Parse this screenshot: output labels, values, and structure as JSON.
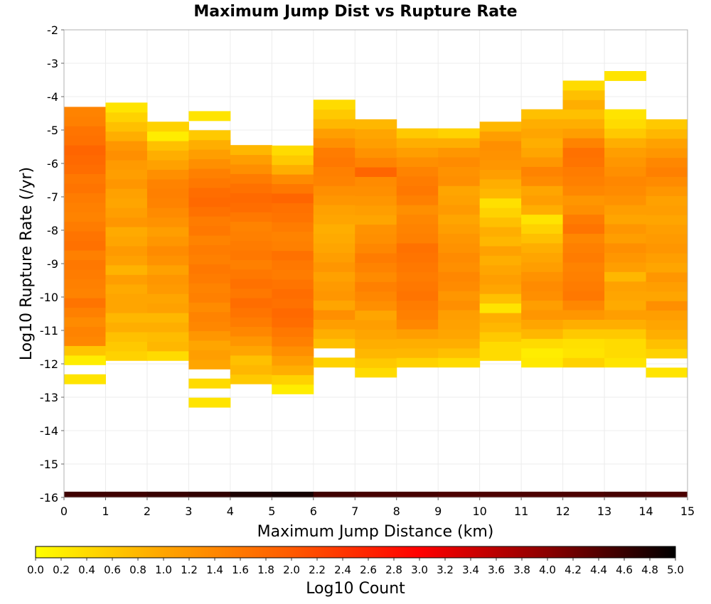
{
  "chart_data": {
    "type": "heatmap",
    "title": "Maximum Jump Dist vs Rupture Rate",
    "xlabel": "Maximum Jump Distance (km)",
    "ylabel": "Log10 Rupture Rate (/yr)",
    "xlim": [
      0,
      15
    ],
    "ylim": [
      -16,
      -2
    ],
    "x_ticks": [
      "0",
      "1",
      "2",
      "3",
      "4",
      "5",
      "6",
      "7",
      "8",
      "9",
      "10",
      "11",
      "12",
      "13",
      "14",
      "15"
    ],
    "y_ticks": [
      "-2",
      "-3",
      "-4",
      "-5",
      "-6",
      "-7",
      "-8",
      "-9",
      "-10",
      "-11",
      "-12",
      "-13",
      "-14",
      "-15",
      "-16"
    ],
    "grid": true,
    "x_bin_width": 1,
    "y_bin_height": 0.286,
    "colorbar": {
      "label": "Log10 Count",
      "range": [
        0,
        5
      ],
      "ticks": [
        "0.0",
        "0.2",
        "0.4",
        "0.6",
        "0.8",
        "1.0",
        "1.2",
        "1.4",
        "1.6",
        "1.8",
        "2.0",
        "2.2",
        "2.4",
        "2.6",
        "2.8",
        "3.0",
        "3.2",
        "3.4",
        "3.6",
        "3.8",
        "4.0",
        "4.2",
        "4.4",
        "4.6",
        "4.8",
        "5.0"
      ],
      "colors": [
        "#ffff00",
        "#ffa500",
        "#ff5a00",
        "#ff0000",
        "#8b0000",
        "#000000"
      ]
    },
    "bottom_row": {
      "y": -16,
      "values": [
        4.55,
        4.55,
        4.6,
        4.65,
        4.8,
        4.85,
        4.55,
        4.5,
        4.5,
        4.45,
        4.45,
        4.45,
        4.45,
        4.5,
        4.45
      ]
    },
    "columns": [
      {
        "x": 0,
        "start": -12.6,
        "values": [
          0.3,
          null,
          0.2,
          0.65,
          1.4,
          1.45,
          1.35,
          1.5,
          1.65,
          1.45,
          1.5,
          1.55,
          1.6,
          1.5,
          1.7,
          1.65,
          1.55,
          1.45,
          1.5,
          1.55,
          1.65,
          1.6,
          1.75,
          1.8,
          1.85,
          1.7,
          1.65,
          1.5,
          1.45
        ]
      },
      {
        "x": 1,
        "start": -11.9,
        "values": [
          0.5,
          0.6,
          0.7,
          0.9,
          0.8,
          1.0,
          1.0,
          0.95,
          1.1,
          0.85,
          1.05,
          1.15,
          1.0,
          0.95,
          1.2,
          1.1,
          1.0,
          1.05,
          1.2,
          1.1,
          1.15,
          1.3,
          1.2,
          0.9,
          0.7,
          0.5,
          0.3
        ]
      },
      {
        "x": 2,
        "start": -11.9,
        "values": [
          0.4,
          0.8,
          0.75,
          0.9,
          0.8,
          1.05,
          1.0,
          1.15,
          1.2,
          1.05,
          1.25,
          1.35,
          1.2,
          1.1,
          1.25,
          1.35,
          1.45,
          1.5,
          1.45,
          1.3,
          1.05,
          0.9,
          0.7,
          0.2,
          0.5
        ]
      },
      {
        "x": 3,
        "start": -13.3,
        "values": [
          0.3,
          null,
          0.4,
          null,
          1.0,
          1.1,
          1.0,
          1.2,
          1.4,
          1.45,
          1.35,
          1.5,
          1.45,
          1.55,
          1.6,
          1.5,
          1.55,
          1.45,
          1.6,
          1.55,
          1.7,
          1.8,
          1.75,
          1.6,
          1.5,
          1.3,
          1.1,
          0.9,
          0.6,
          null,
          0.3
        ]
      },
      {
        "x": 4,
        "start": -12.6,
        "values": [
          0.6,
          0.8,
          0.7,
          1.0,
          1.2,
          1.4,
          1.55,
          1.65,
          1.75,
          1.6,
          1.7,
          1.6,
          1.5,
          1.6,
          1.55,
          1.5,
          1.45,
          1.6,
          1.75,
          1.8,
          1.7,
          1.55,
          1.3,
          1.1,
          0.8
        ]
      },
      {
        "x": 5,
        "start": -12.9,
        "values": [
          0.2,
          0.5,
          0.9,
          1.1,
          1.3,
          1.5,
          1.6,
          1.75,
          1.8,
          1.7,
          1.75,
          1.65,
          1.55,
          1.6,
          1.7,
          1.5,
          1.45,
          1.55,
          1.65,
          1.7,
          1.85,
          1.6,
          1.35,
          0.9,
          0.6,
          0.4
        ]
      },
      {
        "x": 6,
        "start": -12.1,
        "values": [
          0.5,
          null,
          0.7,
          0.9,
          1.1,
          1.3,
          1.0,
          1.2,
          1.15,
          1.05,
          1.2,
          1.1,
          1.0,
          0.95,
          0.9,
          1.0,
          1.05,
          1.2,
          1.3,
          1.45,
          1.5,
          1.6,
          1.55,
          1.3,
          1.1,
          0.8,
          0.6,
          0.4
        ]
      },
      {
        "x": 7,
        "start": -12.4,
        "values": [
          0.4,
          0.6,
          0.8,
          0.9,
          1.0,
          1.1,
          1.0,
          1.3,
          1.4,
          1.5,
          1.35,
          1.45,
          1.55,
          1.4,
          1.3,
          1.25,
          1.0,
          1.1,
          1.2,
          1.3,
          1.35,
          1.85,
          1.45,
          1.25,
          1.1,
          1.0,
          0.8
        ]
      },
      {
        "x": 8,
        "start": -12.1,
        "values": [
          0.5,
          0.8,
          0.9,
          1.1,
          1.4,
          1.5,
          1.55,
          1.65,
          1.6,
          1.55,
          1.6,
          1.65,
          1.7,
          1.5,
          1.45,
          1.4,
          1.3,
          1.5,
          1.6,
          1.55,
          1.45,
          1.3,
          1.1,
          0.9,
          0.6
        ]
      },
      {
        "x": 9,
        "start": -12.1,
        "values": [
          0.4,
          0.7,
          0.9,
          1.0,
          1.05,
          1.1,
          1.3,
          1.2,
          1.35,
          1.4,
          1.3,
          1.35,
          1.25,
          1.2,
          1.1,
          1.0,
          1.15,
          1.05,
          1.0,
          1.3,
          1.25,
          1.35,
          1.2,
          0.9,
          0.5
        ]
      },
      {
        "x": 10,
        "start": -11.9,
        "values": [
          0.4,
          0.4,
          0.6,
          0.8,
          0.9,
          0.3,
          0.7,
          1.0,
          1.1,
          1.0,
          0.9,
          1.05,
          0.8,
          0.9,
          0.7,
          0.5,
          0.35,
          0.8,
          0.9,
          1.1,
          1.2,
          1.25,
          1.3,
          1.1,
          0.8
        ]
      },
      {
        "x": 11,
        "start": -12.1,
        "values": [
          0.25,
          0.2,
          0.4,
          0.8,
          1.0,
          1.2,
          1.1,
          1.3,
          1.35,
          1.25,
          1.1,
          1.0,
          0.9,
          0.7,
          0.5,
          0.3,
          0.9,
          1.1,
          1.0,
          1.35,
          1.45,
          1.2,
          1.0,
          0.9,
          1.0,
          0.9,
          0.7
        ]
      },
      {
        "x": 12,
        "start": -12.1,
        "values": [
          0.5,
          0.3,
          0.35,
          0.6,
          0.9,
          1.2,
          1.4,
          1.6,
          1.55,
          1.5,
          1.45,
          1.55,
          1.5,
          1.4,
          1.65,
          1.55,
          1.3,
          1.2,
          1.4,
          1.5,
          1.55,
          1.65,
          1.7,
          1.45,
          1.1,
          0.9,
          0.7,
          0.9,
          0.7,
          0.4
        ]
      },
      {
        "x": 13,
        "start": -12.1,
        "values": [
          0.3,
          0.4,
          0.4,
          0.6,
          0.9,
          1.1,
          0.95,
          1.0,
          1.05,
          0.8,
          1.1,
          1.2,
          1.3,
          1.1,
          1.2,
          1.0,
          1.1,
          1.25,
          1.35,
          1.4,
          1.3,
          1.2,
          1.1,
          0.9,
          0.6,
          0.4,
          0.3,
          null,
          null,
          null,
          0.3
        ]
      },
      {
        "x": 14,
        "start": -12.4,
        "values": [
          0.3,
          null,
          0.5,
          0.7,
          0.9,
          1.0,
          1.1,
          1.3,
          1.0,
          1.1,
          1.2,
          1.0,
          1.1,
          1.2,
          1.15,
          1.1,
          1.0,
          1.1,
          1.05,
          1.2,
          1.35,
          1.5,
          1.4,
          1.2,
          1.05,
          0.8,
          0.6
        ]
      }
    ]
  }
}
